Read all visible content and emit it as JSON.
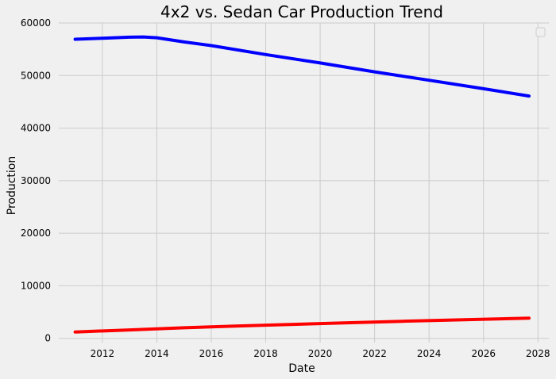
{
  "chart_data": {
    "type": "line",
    "title": "4x2 vs. Sedan Car Production Trend",
    "xlabel": "Date",
    "ylabel": "Production",
    "xlim": [
      2010.4,
      2028.4
    ],
    "ylim": [
      -800,
      60000
    ],
    "x_ticks": [
      2012,
      2014,
      2016,
      2018,
      2020,
      2022,
      2024,
      2026,
      2028
    ],
    "y_ticks": [
      0,
      10000,
      20000,
      30000,
      40000,
      50000,
      60000
    ],
    "grid": true,
    "legend": {
      "placement": "top-right",
      "entries": []
    },
    "colors": {
      "background": "#f0f0f0",
      "grid": "#cbcbcb"
    },
    "series": [
      {
        "color": "#0000ff",
        "x": [
          2011.0,
          2012.0,
          2013.0,
          2013.5,
          2014.0,
          2015.0,
          2016.0,
          2018.0,
          2020.0,
          2022.0,
          2024.0,
          2026.0,
          2027.67
        ],
        "y": [
          56900,
          57100,
          57300,
          57350,
          57200,
          56400,
          55700,
          54000,
          52400,
          50700,
          49100,
          47500,
          46100
        ]
      },
      {
        "color": "#ff0000",
        "x": [
          2011.0,
          2013.0,
          2015.0,
          2017.0,
          2019.0,
          2021.0,
          2023.0,
          2025.0,
          2027.67
        ],
        "y": [
          1200,
          1600,
          2000,
          2350,
          2650,
          2950,
          3250,
          3500,
          3850
        ]
      }
    ]
  }
}
